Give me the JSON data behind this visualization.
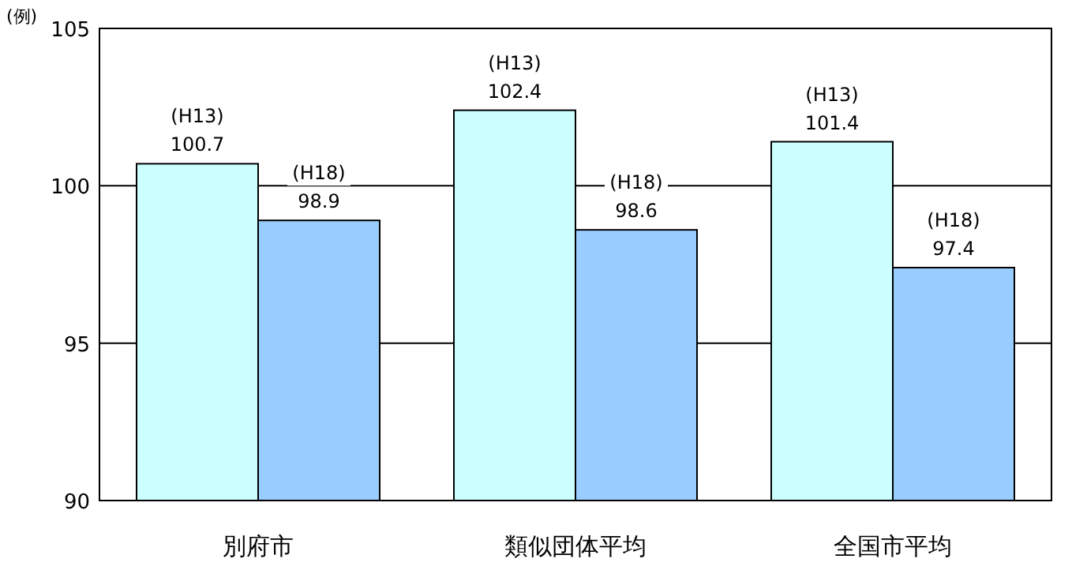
{
  "chart_data": {
    "type": "bar",
    "ylabel": "(例)",
    "categories": [
      "別府市",
      "類似団体平均",
      "全国市平均"
    ],
    "series": [
      {
        "name": "(H13)",
        "color": "#ccffff",
        "values": [
          100.7,
          102.4,
          101.4
        ]
      },
      {
        "name": "(H18)",
        "color": "#99ccff",
        "values": [
          98.9,
          98.6,
          97.4
        ]
      }
    ],
    "ylim": [
      90,
      105
    ],
    "yticks": [
      90,
      95,
      100,
      105
    ],
    "grid": "y",
    "data_labels": true
  }
}
